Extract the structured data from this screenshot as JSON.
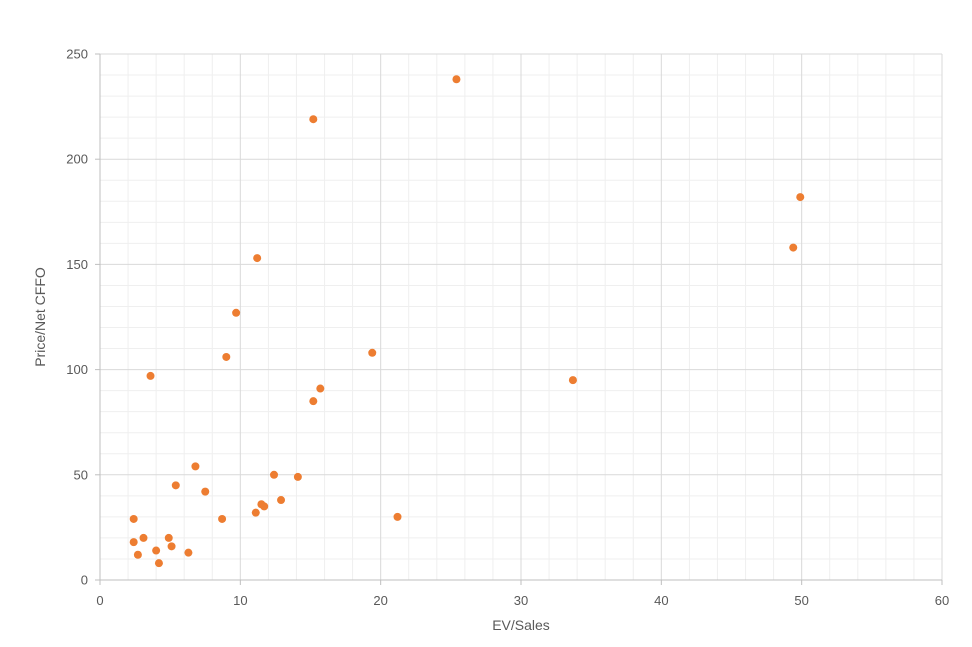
{
  "chart_data": {
    "type": "scatter",
    "title": "",
    "xlabel": "EV/Sales",
    "ylabel": "Price/Net CFFO",
    "xlim": [
      0,
      60
    ],
    "ylim": [
      0,
      250
    ],
    "x_ticks": [
      "0",
      "10",
      "20",
      "30",
      "40",
      "50",
      "60"
    ],
    "y_ticks": [
      "0",
      "50",
      "100",
      "150",
      "200",
      "250"
    ],
    "grid": true,
    "legend": "none",
    "marker_color": "#ED7D31",
    "points": [
      {
        "x": 25.4,
        "y": 238
      },
      {
        "x": 15.2,
        "y": 219
      },
      {
        "x": 49.9,
        "y": 182
      },
      {
        "x": 49.4,
        "y": 158
      },
      {
        "x": 11.2,
        "y": 153
      },
      {
        "x": 9.7,
        "y": 127
      },
      {
        "x": 19.4,
        "y": 108
      },
      {
        "x": 9.0,
        "y": 106
      },
      {
        "x": 3.6,
        "y": 97
      },
      {
        "x": 33.7,
        "y": 95
      },
      {
        "x": 15.7,
        "y": 91
      },
      {
        "x": 15.2,
        "y": 85
      },
      {
        "x": 6.8,
        "y": 54
      },
      {
        "x": 12.4,
        "y": 50
      },
      {
        "x": 14.1,
        "y": 49
      },
      {
        "x": 5.4,
        "y": 45
      },
      {
        "x": 7.5,
        "y": 42
      },
      {
        "x": 12.9,
        "y": 38
      },
      {
        "x": 11.5,
        "y": 36
      },
      {
        "x": 11.7,
        "y": 35
      },
      {
        "x": 11.1,
        "y": 32
      },
      {
        "x": 21.2,
        "y": 30
      },
      {
        "x": 8.7,
        "y": 29
      },
      {
        "x": 2.4,
        "y": 29
      },
      {
        "x": 3.1,
        "y": 20
      },
      {
        "x": 4.9,
        "y": 20
      },
      {
        "x": 2.4,
        "y": 18
      },
      {
        "x": 5.1,
        "y": 16
      },
      {
        "x": 4.0,
        "y": 14
      },
      {
        "x": 6.3,
        "y": 13
      },
      {
        "x": 2.7,
        "y": 12
      },
      {
        "x": 4.2,
        "y": 8
      }
    ]
  }
}
